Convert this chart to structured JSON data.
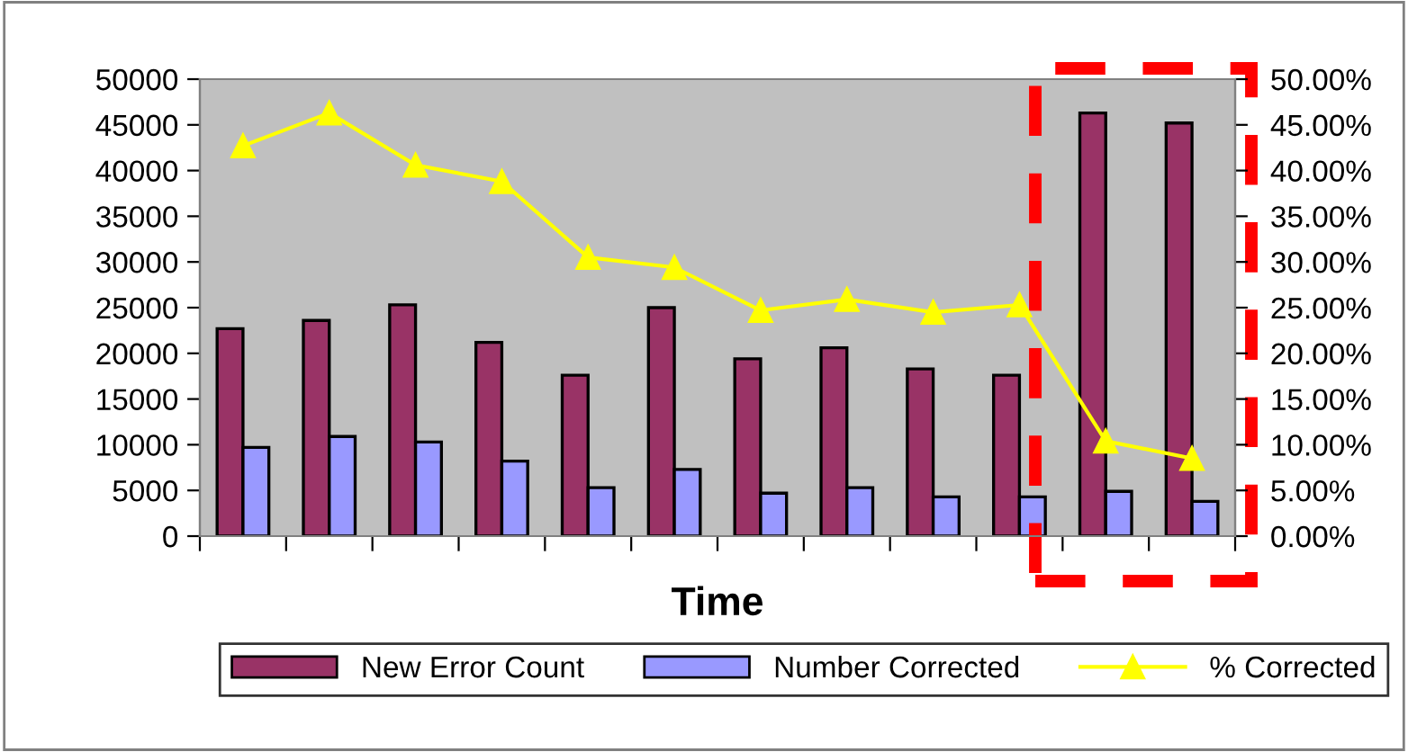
{
  "chart_data": {
    "type": "bar",
    "xlabel": "Time",
    "categories": [
      null,
      null,
      null,
      null,
      null,
      null,
      null,
      null,
      null,
      null,
      null,
      null
    ],
    "series": [
      {
        "name": "New Error Count",
        "color": "#993366",
        "values": [
          22700,
          23600,
          25300,
          21200,
          17600,
          25000,
          19400,
          20600,
          18300,
          17600,
          46300,
          45200
        ]
      },
      {
        "name": "Number Corrected",
        "color": "#9999ff",
        "values": [
          9700,
          10900,
          10300,
          8200,
          5300,
          7300,
          4700,
          5300,
          4300,
          4300,
          4900,
          3800
        ]
      },
      {
        "name": "% Corrected",
        "type": "line",
        "axis": "y2",
        "marker": "triangle",
        "color": "#ffff00",
        "values": [
          42.7,
          46.3,
          40.6,
          38.8,
          30.5,
          29.4,
          24.7,
          25.9,
          24.5,
          25.3,
          10.4,
          8.5
        ]
      }
    ],
    "ylim": [
      0,
      50000
    ],
    "yticks": [
      0,
      5000,
      10000,
      15000,
      20000,
      25000,
      30000,
      35000,
      40000,
      45000,
      50000
    ],
    "y2lim": [
      0,
      50
    ],
    "y2ticks": [
      {
        "value": 0,
        "label": "0.00%"
      },
      {
        "value": 5,
        "label": "5.00%"
      },
      {
        "value": 10,
        "label": "10.00%"
      },
      {
        "value": 15,
        "label": "15.00%"
      },
      {
        "value": 20,
        "label": "20.00%"
      },
      {
        "value": 25,
        "label": "25.00%"
      },
      {
        "value": 30,
        "label": "30.00%"
      },
      {
        "value": 35,
        "label": "35.00%"
      },
      {
        "value": 40,
        "label": "40.00%"
      },
      {
        "value": 45,
        "label": "45.00%"
      },
      {
        "value": 50,
        "label": "50.00%"
      }
    ],
    "grid": false,
    "legend": "bottom"
  }
}
